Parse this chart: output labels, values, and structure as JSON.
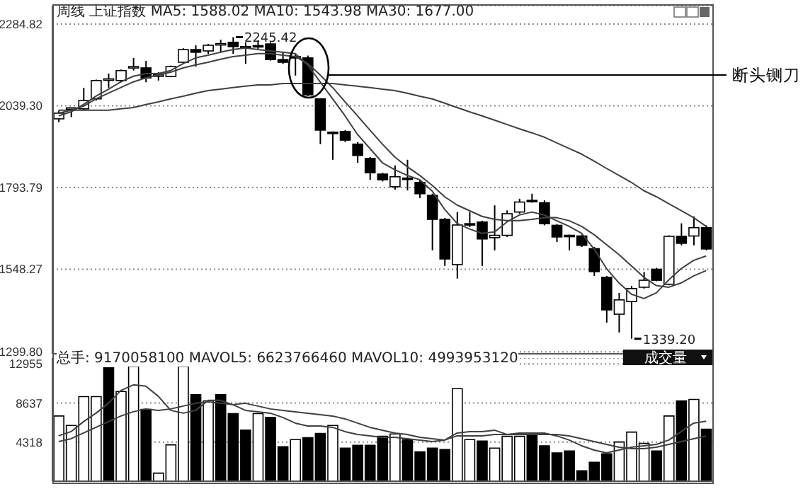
{
  "chart_data": [
    {
      "type": "candlestick",
      "title": "周线 上证指数 MA5: 1588.02 MA10: 1543.98 MA30: 1677.00",
      "categories": [
        null,
        null,
        null,
        null,
        null,
        null,
        null,
        null,
        null,
        null,
        null,
        null,
        null,
        null,
        null,
        null,
        null,
        null,
        null,
        null,
        null,
        null,
        null,
        null,
        null,
        null,
        null,
        null,
        null,
        null,
        null,
        null,
        null,
        null,
        null,
        null,
        null,
        null,
        null,
        null,
        null,
        null,
        null,
        null,
        null,
        null,
        null,
        null,
        null,
        null,
        null,
        null,
        null
      ],
      "ohlc": [
        [
          2000,
          2025,
          1990,
          2017
        ],
        [
          2030,
          2034,
          2005,
          2033
        ],
        [
          2030,
          2093,
          2025,
          2055
        ],
        [
          2060,
          2118,
          2055,
          2115
        ],
        [
          2117,
          2136,
          2093,
          2120
        ],
        [
          2115,
          2148,
          2110,
          2145
        ],
        [
          2155,
          2183,
          2145,
          2157
        ],
        [
          2153,
          2174,
          2110,
          2123
        ],
        [
          2130,
          2140,
          2115,
          2132
        ],
        [
          2127,
          2160,
          2125,
          2157
        ],
        [
          2170,
          2212,
          2165,
          2208
        ],
        [
          2208,
          2221,
          2157,
          2200
        ],
        [
          2204,
          2225,
          2195,
          2221
        ],
        [
          2224,
          2238,
          2200,
          2226
        ],
        [
          2230,
          2245.42,
          2195,
          2217
        ],
        [
          2217,
          2230,
          2165,
          2215
        ],
        [
          2220,
          2236,
          2210,
          2218
        ],
        [
          2225,
          2230,
          2175,
          2178
        ],
        [
          2178,
          2200,
          2165,
          2170
        ],
        [
          2187,
          2195,
          2130,
          2185
        ],
        [
          2183,
          2190,
          2068,
          2072
        ],
        [
          2060,
          2062,
          1924,
          1966
        ],
        [
          1960,
          1962,
          1877,
          1958
        ],
        [
          1962,
          1966,
          1930,
          1936
        ],
        [
          1924,
          1930,
          1868,
          1890
        ],
        [
          1881,
          1885,
          1817,
          1838
        ],
        [
          1834,
          1838,
          1812,
          1817
        ],
        [
          1796,
          1860,
          1787,
          1826
        ],
        [
          1822,
          1877,
          1785,
          1820
        ],
        [
          1809,
          1815,
          1762,
          1775
        ],
        [
          1770,
          1775,
          1605,
          1698
        ],
        [
          1698,
          1702,
          1558,
          1579
        ],
        [
          1562,
          1720,
          1520,
          1681
        ],
        [
          1685,
          1720,
          1675,
          1683
        ],
        [
          1690,
          1694,
          1558,
          1639
        ],
        [
          1643,
          1740,
          1605,
          1650
        ],
        [
          1650,
          1725,
          1645,
          1715
        ],
        [
          1720,
          1760,
          1715,
          1750
        ],
        [
          1755,
          1775,
          1748,
          1752
        ],
        [
          1748,
          1755,
          1680,
          1685
        ],
        [
          1680,
          1684,
          1630,
          1645
        ],
        [
          1650,
          1652,
          1605,
          1647
        ],
        [
          1648,
          1652,
          1615,
          1620
        ],
        [
          1610,
          1615,
          1528,
          1541
        ],
        [
          1524,
          1528,
          1388,
          1426
        ],
        [
          1413,
          1477,
          1358,
          1456
        ],
        [
          1451,
          1498,
          1339.2,
          1490
        ],
        [
          1494,
          1540,
          1490,
          1515
        ],
        [
          1548,
          1552,
          1512,
          1515
        ],
        [
          1503,
          1650,
          1500,
          1647
        ],
        [
          1647,
          1686,
          1620,
          1626
        ],
        [
          1648,
          1707,
          1620,
          1673
        ],
        [
          1673,
          1680,
          1605,
          1609
        ]
      ],
      "series": [
        {
          "type": "line",
          "color": "#404040",
          "values": [
            2009,
            2021,
            2043,
            2068,
            2089,
            2111,
            2128,
            2136,
            2136,
            2145,
            2166,
            2183,
            2191,
            2200,
            2208,
            2213,
            2208,
            2204,
            2200,
            2196,
            2162,
            2111,
            2060,
            2009,
            1953,
            1911,
            1868,
            1847,
            1830,
            1817,
            1783,
            1728,
            1686,
            1669,
            1656,
            1660,
            1690,
            1711,
            1720,
            1711,
            1694,
            1677,
            1656,
            1609,
            1550,
            1507,
            1473,
            1460,
            1477,
            1516,
            1550,
            1575,
            1588
          ]
        },
        {
          "type": "line",
          "color": "#404040",
          "values": [
            2017,
            2026,
            2038,
            2060,
            2077,
            2094,
            2111,
            2123,
            2132,
            2140,
            2153,
            2162,
            2170,
            2179,
            2187,
            2191,
            2196,
            2196,
            2191,
            2187,
            2166,
            2132,
            2094,
            2051,
            2009,
            1966,
            1924,
            1885,
            1856,
            1830,
            1800,
            1766,
            1741,
            1724,
            1707,
            1698,
            1694,
            1694,
            1698,
            1703,
            1703,
            1694,
            1677,
            1652,
            1622,
            1592,
            1558,
            1524,
            1499,
            1494,
            1507,
            1528,
            1544
          ]
        },
        {
          "type": "line",
          "color": "#404040",
          "values": [
            2026,
            2026,
            2026,
            2026,
            2026,
            2030,
            2034,
            2043,
            2051,
            2060,
            2068,
            2077,
            2085,
            2089,
            2094,
            2098,
            2102,
            2102,
            2106,
            2106,
            2106,
            2106,
            2106,
            2102,
            2098,
            2094,
            2089,
            2085,
            2077,
            2068,
            2060,
            2047,
            2034,
            2021,
            2009,
            1996,
            1983,
            1970,
            1958,
            1945,
            1928,
            1911,
            1894,
            1873,
            1851,
            1830,
            1809,
            1784,
            1766,
            1745,
            1724,
            1703,
            1677
          ]
        }
      ],
      "ylim": [
        1294,
        2340
      ],
      "yticks": [
        {
          "value": 1299.8,
          "label": "1299.80"
        },
        1548.27,
        1793.79,
        {
          "value": 2039.3,
          "label": "2039.30"
        },
        2284.82
      ],
      "grid": "y",
      "tick_labels": "y",
      "annotations": [
        {
          "text": "2245.42",
          "y": 2245.42
        },
        "1339.20",
        "断头铡刀"
      ]
    },
    {
      "type": "bar",
      "title": "总手: 9170058100 MAVOL5: 6623766460 MAVOL10: 4993953120",
      "categories": [
        null,
        null,
        null,
        null,
        null,
        null,
        null,
        null,
        null,
        null,
        null,
        null,
        null,
        null,
        null,
        null,
        null,
        null,
        null,
        null,
        null,
        null,
        null,
        null,
        null,
        null,
        null,
        null,
        null,
        null,
        null,
        null,
        null,
        null,
        null,
        null,
        null,
        null,
        null,
        null,
        null,
        null,
        null,
        null,
        null,
        null,
        null,
        null,
        null,
        null,
        null,
        null,
        null
      ],
      "series": [
        {
          "type": "bar",
          "values": [
            7199,
            6150,
            9343,
            9343,
            12520,
            9907,
            12676,
            7934,
            892,
            4017,
            12676,
            9547,
            8870,
            9547,
            7460,
            5634,
            7460,
            7043,
            3808,
            4591,
            4800,
            5269,
            6150,
            3651,
            3964,
            3964,
            4956,
            5217,
            4591,
            3234,
            3651,
            3495,
            10224,
            4591,
            4434,
            3651,
            4956,
            4956,
            5321,
            3913,
            3130,
            3338,
            1148,
            2087,
            3025,
            4330,
            5425,
            4174,
            3338,
            7199,
            8870,
            9026,
            5738
          ],
          "colors": [
            "#ffffff",
            "#ffffff",
            "#ffffff",
            "#ffffff",
            "#000000",
            "#ffffff",
            "#ffffff",
            "#000000",
            "#ffffff",
            "#ffffff",
            "#ffffff",
            "#000000",
            "#ffffff",
            "#000000",
            "#000000",
            "#000000",
            "#ffffff",
            "#000000",
            "#000000",
            "#ffffff",
            "#000000",
            "#000000",
            "#ffffff",
            "#000000",
            "#000000",
            "#000000",
            "#000000",
            "#ffffff",
            "#000000",
            "#000000",
            "#000000",
            "#000000",
            "#ffffff",
            "#ffffff",
            "#000000",
            "#ffffff",
            "#ffffff",
            "#ffffff",
            "#000000",
            "#000000",
            "#000000",
            "#000000",
            "#000000",
            "#000000",
            "#000000",
            "#ffffff",
            "#ffffff",
            "#ffffff",
            "#000000",
            "#ffffff",
            "#000000",
            "#ffffff",
            "#000000"
          ]
        },
        {
          "type": "line",
          "color": "#404040",
          "values": [
            5008,
            5478,
            6573,
            7512,
            8608,
            10016,
            10642,
            10486,
            9390,
            7825,
            7512,
            7825,
            8921,
            8921,
            8451,
            7825,
            7669,
            7512,
            7043,
            6417,
            6104,
            6104,
            5947,
            5478,
            5165,
            5008,
            4852,
            4852,
            4695,
            4539,
            4382,
            4539,
            5321,
            5478,
            5478,
            5634,
            5165,
            5321,
            5321,
            5321,
            5008,
            4539,
            3913,
            3443,
            3130,
            3443,
            3756,
            3913,
            4069,
            4539,
            5478,
            6417,
            6624
          ]
        },
        {
          "type": "line",
          "color": "#404040",
          "values": [
            4382,
            4695,
            5321,
            5947,
            6573,
            7199,
            7669,
            7982,
            7825,
            7982,
            8295,
            8608,
            8764,
            8608,
            8451,
            8608,
            8295,
            7982,
            7825,
            7669,
            7512,
            7356,
            7199,
            6886,
            6417,
            5947,
            5634,
            5321,
            5165,
            4852,
            4695,
            4539,
            5008,
            5008,
            5008,
            5165,
            5165,
            5165,
            5165,
            5165,
            5165,
            5008,
            4695,
            4382,
            4069,
            3756,
            3600,
            3600,
            3756,
            4069,
            4382,
            4695,
            4994
          ]
        }
      ],
      "ylim": [
        0,
        13600
      ],
      "yticks": [
        4318,
        8637,
        12955
      ],
      "grid": "y",
      "tick_labels": "y",
      "annotations": [
        "成交量"
      ]
    }
  ]
}
